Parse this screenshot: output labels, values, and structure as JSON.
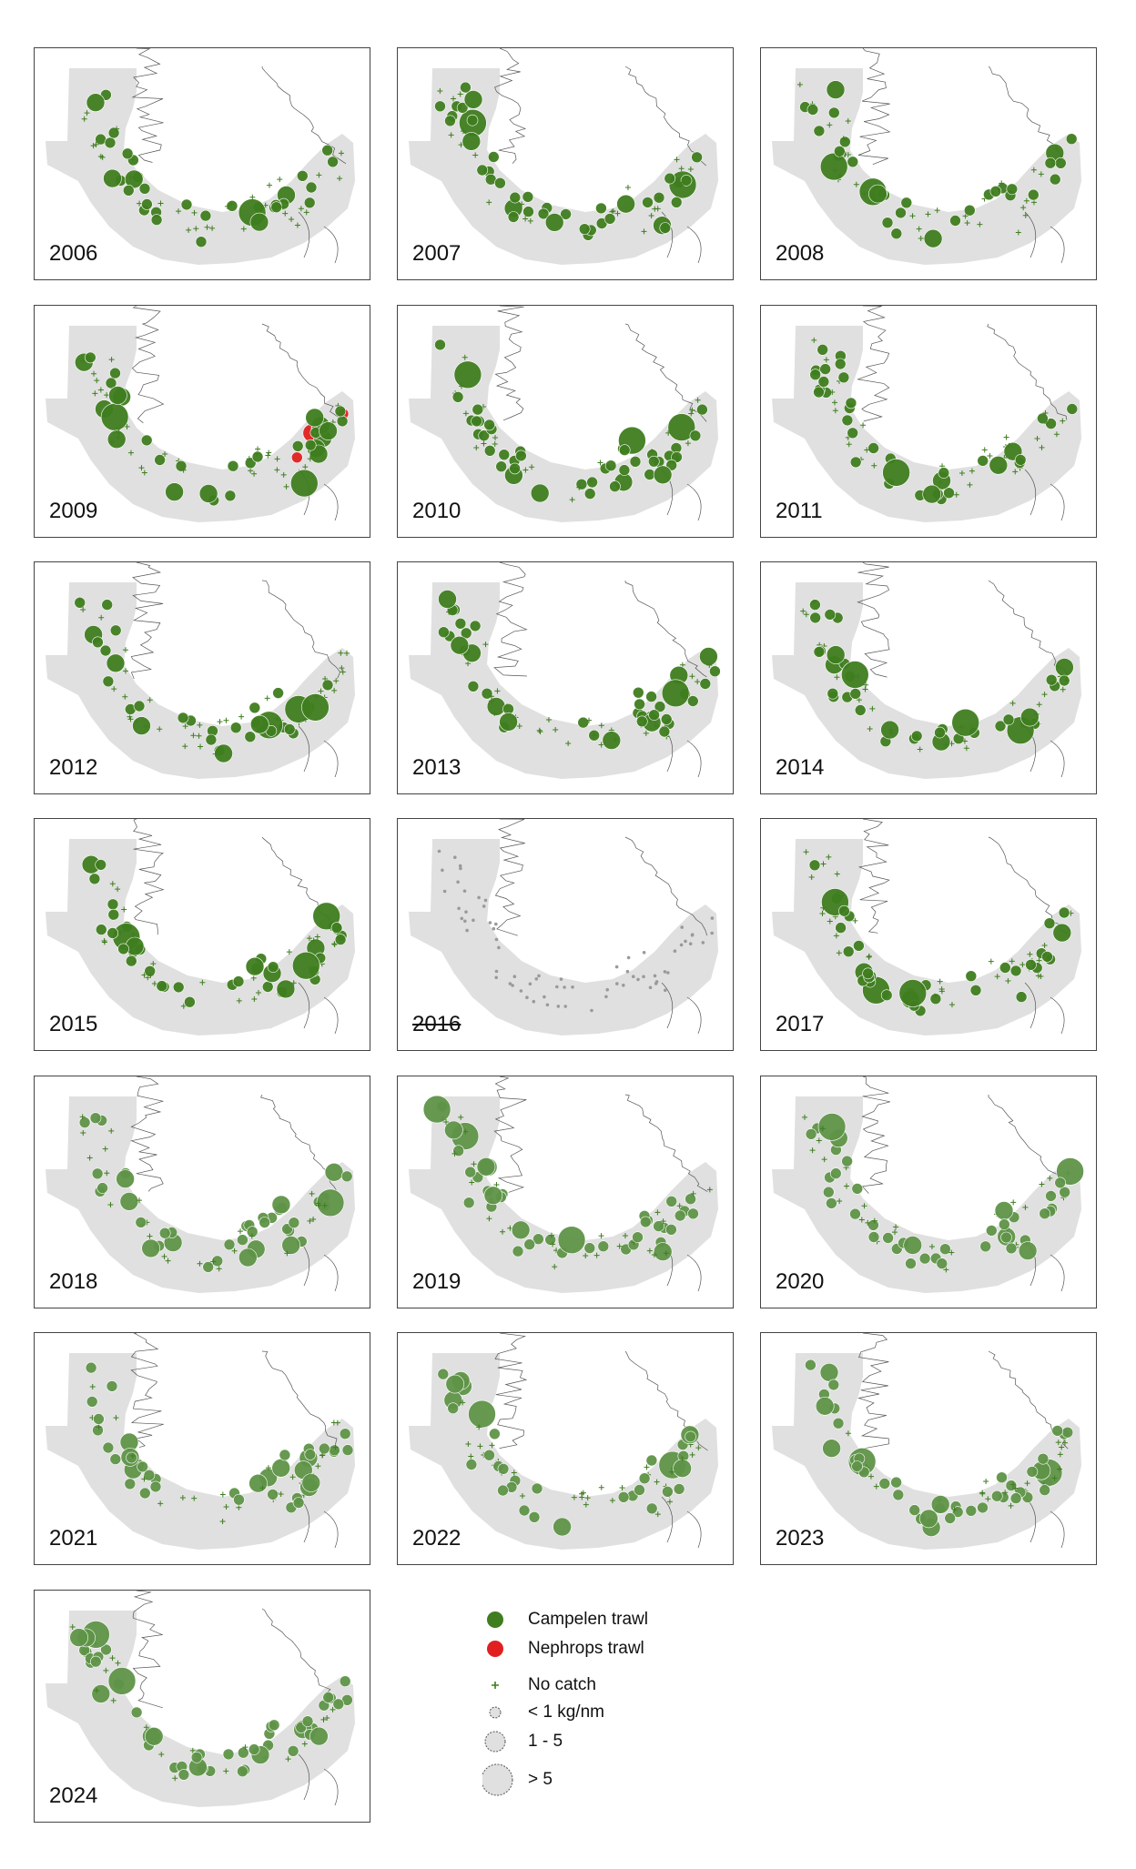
{
  "colors": {
    "campelen": "#3f7d1f",
    "campelen_light": "#5f9448",
    "nephrops": "#e02020",
    "land": "#e0e0e0",
    "coast": "#555555",
    "no_catch_grey": "#9a9a9a"
  },
  "panels": [
    {
      "year": "2006"
    },
    {
      "year": "2007"
    },
    {
      "year": "2008"
    },
    {
      "year": "2009"
    },
    {
      "year": "2010"
    },
    {
      "year": "2011"
    },
    {
      "year": "2012"
    },
    {
      "year": "2013"
    },
    {
      "year": "2014"
    },
    {
      "year": "2015"
    },
    {
      "year": "2016"
    },
    {
      "year": "2017"
    },
    {
      "year": "2018"
    },
    {
      "year": "2019"
    },
    {
      "year": "2020"
    },
    {
      "year": "2021"
    },
    {
      "year": "2022"
    },
    {
      "year": "2023"
    },
    {
      "year": "2024"
    }
  ],
  "legend": {
    "campelen": "Campelen trawl",
    "nephrops": "Nephrops trawl",
    "no_catch": "No catch",
    "lt1": "< 1 kg/nm",
    "mid": "1 - 5",
    "gt5": "> 5"
  }
}
